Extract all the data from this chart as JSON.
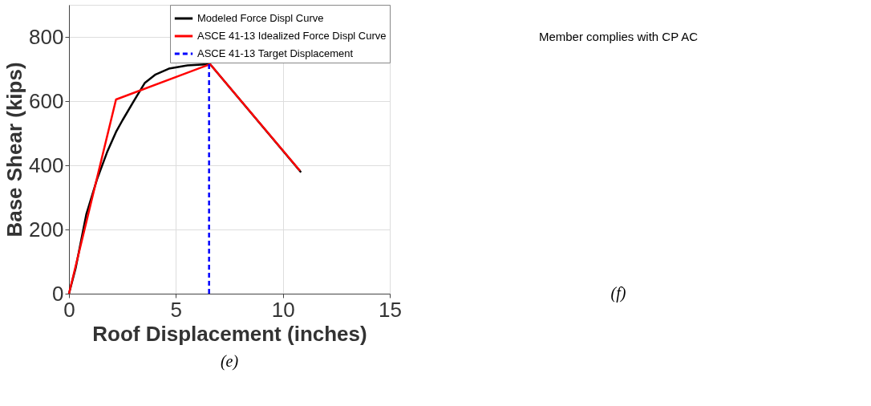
{
  "chart_data": [
    {
      "type": "line",
      "xlabel": "Roof Displacement (inches)",
      "ylabel": "Base Shear (kips)",
      "xlim": [
        0,
        15
      ],
      "ylim": [
        0,
        900
      ],
      "xticks": [
        0,
        5,
        10,
        15
      ],
      "yticks": [
        0,
        200,
        400,
        600,
        800
      ],
      "grid": true,
      "legend": "top right",
      "annotations": [
        "(e)"
      ],
      "series": [
        {
          "name": "Modeled Force Displ Curve",
          "color": "#000000",
          "x": [
            0,
            0.31,
            0.81,
            1.31,
            1.8,
            2.2,
            2.5,
            3.05,
            3.55,
            4.05,
            4.67,
            5.54,
            6.6,
            10.85
          ],
          "values": [
            0,
            79,
            247,
            356,
            444,
            504,
            540,
            602,
            657,
            683,
            701,
            711,
            715,
            378
          ]
        },
        {
          "name": "ASCE 41-13 Idealized Force Displ Curve",
          "color": "#ff0000",
          "x": [
            0,
            2.2,
            6.6,
            10.8
          ],
          "values": [
            0,
            605,
            715,
            383
          ]
        },
        {
          "name": "ASCE 41-13 Target Displacement",
          "color": "#0000ff",
          "line_style": "dashed",
          "x": [
            6.55,
            6.55
          ],
          "values": [
            0,
            715
          ]
        }
      ]
    },
    {
      "type": "other",
      "annotations": [
        "Member complies with CP AC",
        "(f)"
      ]
    }
  ]
}
